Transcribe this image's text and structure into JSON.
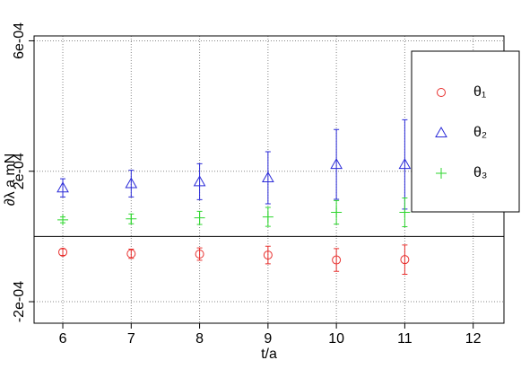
{
  "chart_data": {
    "type": "errorbar-scatter",
    "xlabel": "t/a",
    "ylabel": "∂λ a mN",
    "xlim": [
      5.58,
      12.45
    ],
    "xticks": [
      6,
      7,
      8,
      9,
      10,
      11,
      12
    ],
    "ylim": [
      -0.000266,
      0.000615
    ],
    "yticks": [
      {
        "value": -0.0002,
        "label": "-2e-04"
      },
      {
        "value": 0.0002,
        "label": "2e-04"
      },
      {
        "value": 0.0006,
        "label": "6e-04"
      }
    ],
    "grid": true,
    "hline": 0,
    "legend": "right",
    "x": [
      6,
      7,
      8,
      9,
      10,
      11
    ],
    "series": [
      {
        "name": "θ₁",
        "color": "#e8302e",
        "marker": "circle",
        "values": [
          -4.8e-05,
          -5.3e-05,
          -5.4e-05,
          -5.7e-05,
          -7.2e-05,
          -7.1e-05
        ],
        "errors": [
          1e-05,
          1.4e-05,
          1.9e-05,
          2.7e-05,
          3.5e-05,
          4.5e-05
        ]
      },
      {
        "name": "θ₂",
        "color": "#2a2ad8",
        "marker": "triangle",
        "values": [
          0.000149,
          0.000162,
          0.000168,
          0.00018,
          0.000221,
          0.000221
        ],
        "errors": [
          2.8e-05,
          4.1e-05,
          5.5e-05,
          8e-05,
          0.000107,
          0.000137
        ]
      },
      {
        "name": "θ₃",
        "color": "#2ed62e",
        "marker": "plus",
        "values": [
          5.1e-05,
          5.4e-05,
          5.7e-05,
          6e-05,
          7.4e-05,
          7.4e-05
        ],
        "errors": [
          9e-06,
          1.5e-05,
          2e-05,
          2.9e-05,
          3.6e-05,
          4.4e-05
        ]
      }
    ]
  }
}
